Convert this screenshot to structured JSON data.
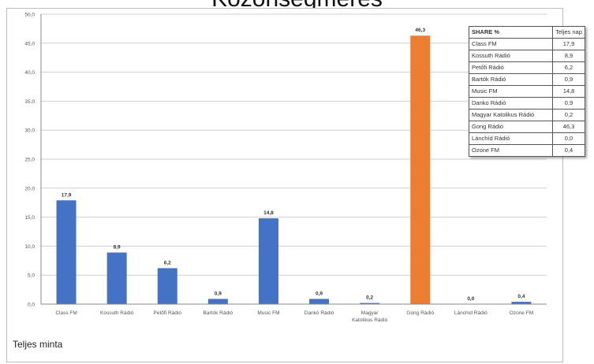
{
  "title": "Közönségmérés",
  "footnote": "Teljes minta",
  "colors": {
    "default_bar": "#4472c4",
    "highlight_bar": "#ed7d31"
  },
  "legend": {
    "header": "SHARE %",
    "value_header": "Teljes nap",
    "rows": [
      {
        "name": "Class FM",
        "value": "17,9"
      },
      {
        "name": "Kossuth Rádió",
        "value": "8,9"
      },
      {
        "name": "Petőfi Rádió",
        "value": "6,2"
      },
      {
        "name": "Bartók Rádió",
        "value": "0,9"
      },
      {
        "name": "Music FM",
        "value": "14,8"
      },
      {
        "name": "Danko Rádió",
        "value": "0,9"
      },
      {
        "name": "Magyar Katolikus Rádió",
        "value": "0,2"
      },
      {
        "name": "Gong Rádió",
        "value": "46,3"
      },
      {
        "name": "Lánchíd Rádió",
        "value": "0,0"
      },
      {
        "name": "Ozone FM",
        "value": "0,4"
      }
    ]
  },
  "chart_data": {
    "type": "bar",
    "title": "Közönségmérés",
    "categories": [
      "Class FM",
      "Kossuth Rádió",
      "Petőfi Rádió",
      "Bartók Rádió",
      "Music FM",
      "Dankó Rádió",
      "Magyar Katolikus Rádió",
      "Gong Rádió",
      "Lánchíd Rádió",
      "Ozone FM"
    ],
    "category_label_lines": [
      [
        "Class FM"
      ],
      [
        "Kossuth Rádió"
      ],
      [
        "Petőfi Rádió"
      ],
      [
        "Bartók Rádió"
      ],
      [
        "Music FM"
      ],
      [
        "Dankó Rádió"
      ],
      [
        "Magyar",
        "Katolikus Rádió"
      ],
      [
        "Gong Rádió"
      ],
      [
        "Lánchíd Rádió"
      ],
      [
        "Ozone FM"
      ]
    ],
    "values": [
      17.9,
      8.9,
      6.2,
      0.9,
      14.8,
      0.9,
      0.2,
      46.3,
      0.0,
      0.4
    ],
    "data_labels": [
      "17,9",
      "8,9",
      "6,2",
      "0,9",
      "14,8",
      "0,9",
      "0,2",
      "46,3",
      "0,0",
      "0,4"
    ],
    "highlight_index": 7,
    "ylim": [
      0,
      50
    ],
    "yticks": [
      0,
      5,
      10,
      15,
      20,
      25,
      30,
      35,
      40,
      45,
      50
    ],
    "ytick_labels": [
      "0,0",
      "5,0",
      "10,0",
      "15,0",
      "20,0",
      "25,0",
      "30,0",
      "35,0",
      "40,0",
      "45,0",
      "50,0"
    ],
    "grid": true,
    "legend_position": "top-right"
  }
}
